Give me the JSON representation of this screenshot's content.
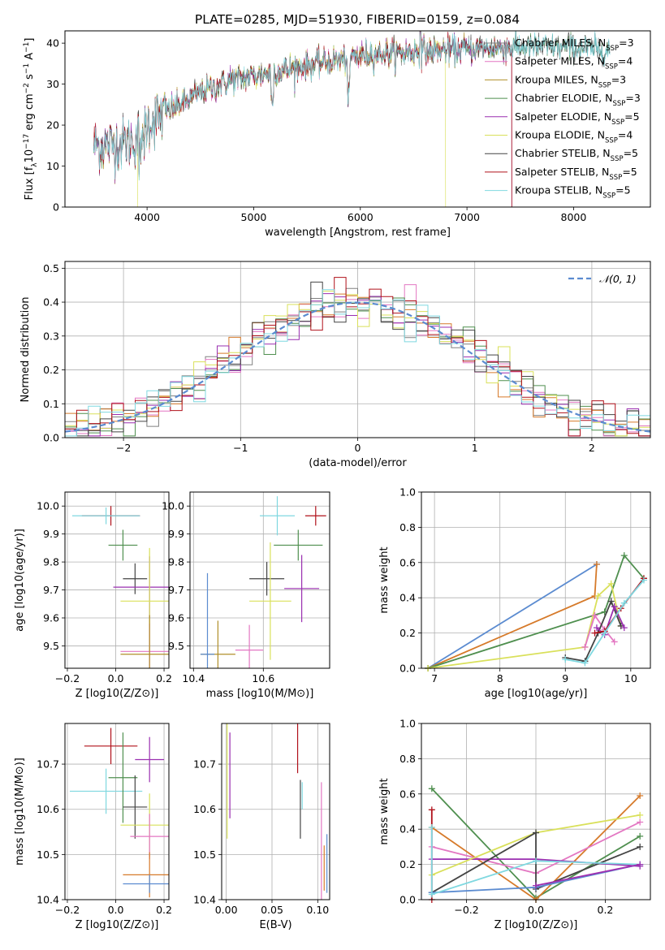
{
  "figure_title": "PLATE=0285, MJD=51930, FIBERID=0159, z=0.084",
  "model_colors": [
    "#808080",
    "#e377c2",
    "#b08f2a",
    "#4f8f4f",
    "#9a2fb0",
    "#d9e05a",
    "#444444",
    "#b0101a",
    "#7fd8e0"
  ],
  "legend_models": [
    {
      "label": "Chabrier MILES, N",
      "sub": "SSP",
      "suffix": "=3"
    },
    {
      "label": "Salpeter MILES, N",
      "sub": "SSP",
      "suffix": "=4"
    },
    {
      "label": "Kroupa MILES, N",
      "sub": "SSP",
      "suffix": "=3"
    },
    {
      "label": "Chabrier ELODIE, N",
      "sub": "SSP",
      "suffix": "=3"
    },
    {
      "label": "Salpeter ELODIE, N",
      "sub": "SSP",
      "suffix": "=5"
    },
    {
      "label": "Kroupa ELODIE, N",
      "sub": "SSP",
      "suffix": "=4"
    },
    {
      "label": "Chabrier STELIB, N",
      "sub": "SSP",
      "suffix": "=5"
    },
    {
      "label": "Salpeter STELIB, N",
      "sub": "SSP",
      "suffix": "=5"
    },
    {
      "label": "Kroupa STELIB, N",
      "sub": "SSP",
      "suffix": "=5"
    }
  ],
  "chart_data": [
    {
      "id": "spectrum",
      "type": "line",
      "xlabel": "wavelength [Angstrom, rest frame]",
      "ylabel_parts": [
        "Flux [f",
        "λ",
        "10",
        "−17",
        "erg cm",
        "−2",
        "s",
        "−1",
        "A",
        "−1",
        "]"
      ],
      "xlim": [
        3230,
        8720
      ],
      "ylim": [
        0,
        43
      ],
      "xticks": [
        4000,
        5000,
        6000,
        7000,
        8000
      ],
      "yticks": [
        0,
        10,
        20,
        30,
        40
      ],
      "legend_location": "upper right",
      "continuum": [
        [
          3500,
          15
        ],
        [
          3700,
          15.5
        ],
        [
          3880,
          16
        ],
        [
          3960,
          20
        ],
        [
          4100,
          22
        ],
        [
          4300,
          25
        ],
        [
          4500,
          28
        ],
        [
          4800,
          31
        ],
        [
          5000,
          32
        ],
        [
          5200,
          33
        ],
        [
          5500,
          34.5
        ],
        [
          5800,
          36
        ],
        [
          6000,
          37
        ],
        [
          6300,
          37.5
        ],
        [
          6600,
          38
        ],
        [
          7000,
          38.5
        ],
        [
          7300,
          39
        ],
        [
          7600,
          39
        ],
        [
          8000,
          39
        ],
        [
          8400,
          38
        ]
      ],
      "series_ranges": [
        [
          3500,
          8340
        ],
        [
          3500,
          7420
        ],
        [
          3500,
          7420
        ],
        [
          3500,
          8340
        ],
        [
          3500,
          7420
        ],
        [
          3910,
          6800
        ],
        [
          3500,
          8340
        ],
        [
          3500,
          7420
        ],
        [
          3500,
          8340
        ]
      ]
    },
    {
      "id": "residuals",
      "type": "histogram",
      "xlabel": "(data-model)/error",
      "ylabel": "Normed distribution",
      "xlim": [
        -2.5,
        2.5
      ],
      "ylim": [
        0,
        0.52
      ],
      "xticks": [
        -2,
        -1,
        0,
        1,
        2
      ],
      "yticks": [
        0,
        0.1,
        0.2,
        0.3,
        0.4,
        0.5
      ],
      "bin_width": 0.1,
      "legend": [
        {
          "label": "𝒩(0, 1)",
          "style": "dashed",
          "color": "#5b8bd0"
        }
      ],
      "reference_curve": "normal(0,1)"
    },
    {
      "id": "age-vs-Z",
      "type": "errorbar",
      "xlabel": "Z [log10(Z/Z⊙)]",
      "ylabel": "age  [log10(age/yr)]",
      "xlim": [
        -0.21,
        0.22
      ],
      "ylim": [
        9.42,
        10.05
      ],
      "xticks": [
        -0.2,
        0.0,
        0.2
      ],
      "yticks": [
        9.5,
        9.6,
        9.7,
        9.8,
        9.9,
        10.0
      ],
      "points": [
        {
          "x": -0.02,
          "xerr": 0.12,
          "y": 9.965,
          "yerr": 0.035,
          "c": "#b0101a"
        },
        {
          "x": -0.04,
          "xerr": 0.14,
          "y": 9.965,
          "yerr": 0.03,
          "c": "#7fd8e0"
        },
        {
          "x": 0.03,
          "xerr": 0.06,
          "y": 9.86,
          "yerr": 0.055,
          "c": "#4f8f4f"
        },
        {
          "x": 0.08,
          "xerr": 0.05,
          "y": 9.74,
          "yerr": 0.055,
          "c": "#444444"
        },
        {
          "x": 0.14,
          "xerr": 0.15,
          "y": 9.71,
          "yerr": 0.11,
          "c": "#9a2fb0"
        },
        {
          "x": 0.14,
          "xerr": 0.12,
          "y": 9.66,
          "yerr": 0.19,
          "c": "#d9e05a"
        },
        {
          "x": 0.14,
          "xerr": 0.12,
          "y": 9.48,
          "yerr": 0.1,
          "c": "#e377c2"
        },
        {
          "x": 0.14,
          "xerr": 0.12,
          "y": 9.47,
          "yerr": 0.14,
          "c": "#b08f2a"
        }
      ]
    },
    {
      "id": "age-vs-mass",
      "type": "errorbar",
      "xlabel": "mass [log10(M/M⊙)]",
      "xlim": [
        10.39,
        10.79
      ],
      "ylim": [
        9.42,
        10.05
      ],
      "xticks": [
        10.4,
        10.6
      ],
      "yticks": [
        9.5,
        9.6,
        9.7,
        9.8,
        9.9,
        10.0
      ],
      "points": [
        {
          "x": 10.75,
          "xerr": 0.03,
          "y": 9.965,
          "yerr": 0.035,
          "c": "#b0101a"
        },
        {
          "x": 10.64,
          "xerr": 0.05,
          "y": 9.965,
          "yerr": 0.07,
          "c": "#7fd8e0"
        },
        {
          "x": 10.7,
          "xerr": 0.07,
          "y": 9.86,
          "yerr": 0.055,
          "c": "#4f8f4f"
        },
        {
          "x": 10.61,
          "xerr": 0.05,
          "y": 9.74,
          "yerr": 0.06,
          "c": "#444444"
        },
        {
          "x": 10.71,
          "xerr": 0.05,
          "y": 9.705,
          "yerr": 0.12,
          "c": "#9a2fb0"
        },
        {
          "x": 10.62,
          "xerr": 0.06,
          "y": 9.66,
          "yerr": 0.21,
          "c": "#d9e05a"
        },
        {
          "x": 10.56,
          "xerr": 0.04,
          "y": 9.485,
          "yerr": 0.09,
          "c": "#e377c2"
        },
        {
          "x": 10.47,
          "xerr": 0.05,
          "y": 9.47,
          "yerr": 0.12,
          "c": "#b08f2a"
        },
        {
          "x": 10.44,
          "xerr": 0.02,
          "y": 9.47,
          "yerr": 0.29,
          "c": "#5b8bd0"
        }
      ]
    },
    {
      "id": "weight-vs-age",
      "type": "line",
      "xlabel": "age  [log10(age/yr)]",
      "ylabel": "mass weight",
      "xlim": [
        6.8,
        10.3
      ],
      "ylim": [
        0,
        1.0
      ],
      "xticks": [
        7,
        8,
        9,
        10
      ],
      "yticks": [
        0.0,
        0.2,
        0.4,
        0.6,
        0.8,
        1.0
      ],
      "series": [
        {
          "c": "#5b8bd0",
          "x": [
            6.9,
            9.48
          ],
          "y": [
            0.0,
            0.59
          ]
        },
        {
          "c": "#d67a2a",
          "x": [
            6.9,
            9.45,
            9.48
          ],
          "y": [
            0.0,
            0.41,
            0.59
          ]
        },
        {
          "c": "#4f8f4f",
          "x": [
            6.9,
            9.6,
            9.9,
            10.2
          ],
          "y": [
            0.0,
            0.32,
            0.64,
            0.51
          ]
        },
        {
          "c": "#d9e05a",
          "x": [
            6.9,
            9.3,
            9.5,
            9.7,
            9.85
          ],
          "y": [
            0.0,
            0.12,
            0.41,
            0.48,
            0.24
          ]
        },
        {
          "c": "#e377c2",
          "x": [
            9.3,
            9.45,
            9.6,
            9.75
          ],
          "y": [
            0.12,
            0.3,
            0.22,
            0.15
          ]
        },
        {
          "c": "#444444",
          "x": [
            9.0,
            9.3,
            9.5,
            9.7,
            9.85
          ],
          "y": [
            0.06,
            0.04,
            0.2,
            0.38,
            0.24
          ]
        },
        {
          "c": "#9a2fb0",
          "x": [
            9.48,
            9.6,
            9.75,
            9.9
          ],
          "y": [
            0.23,
            0.19,
            0.35,
            0.23
          ]
        },
        {
          "c": "#b0101a",
          "x": [
            9.45,
            9.6,
            9.85,
            10.2
          ],
          "y": [
            0.2,
            0.21,
            0.34,
            0.51
          ]
        },
        {
          "c": "#7fd8e0",
          "x": [
            9.0,
            9.3,
            9.6,
            9.9,
            10.2
          ],
          "y": [
            0.05,
            0.03,
            0.2,
            0.37,
            0.5
          ]
        }
      ]
    },
    {
      "id": "mass-vs-Z",
      "type": "errorbar",
      "xlabel": "Z [log10(Z/Z⊙)]",
      "ylabel": "mass [log10(M/M⊙)]",
      "xlim": [
        -0.21,
        0.22
      ],
      "ylim": [
        10.4,
        10.79
      ],
      "xticks": [
        -0.2,
        0.0,
        0.2
      ],
      "yticks": [
        10.4,
        10.5,
        10.6,
        10.7
      ],
      "points": [
        {
          "x": -0.02,
          "xerr": 0.11,
          "y": 10.74,
          "yerr": 0.04,
          "c": "#b0101a"
        },
        {
          "x": -0.04,
          "xerr": 0.15,
          "y": 10.64,
          "yerr": 0.05,
          "c": "#7fd8e0"
        },
        {
          "x": 0.03,
          "xerr": 0.06,
          "y": 10.67,
          "yerr": 0.1,
          "c": "#4f8f4f"
        },
        {
          "x": 0.08,
          "xerr": 0.05,
          "y": 10.605,
          "yerr": 0.07,
          "c": "#444444"
        },
        {
          "x": 0.14,
          "xerr": 0.06,
          "y": 10.71,
          "yerr": 0.05,
          "c": "#9a2fb0"
        },
        {
          "x": 0.14,
          "xerr": 0.12,
          "y": 10.565,
          "yerr": 0.07,
          "c": "#d9e05a"
        },
        {
          "x": 0.14,
          "xerr": 0.08,
          "y": 10.54,
          "yerr": 0.05,
          "c": "#e377c2"
        },
        {
          "x": 0.14,
          "xerr": 0.11,
          "y": 10.455,
          "yerr": 0.05,
          "c": "#d67a2a"
        },
        {
          "x": 0.14,
          "xerr": 0.11,
          "y": 10.435,
          "yerr": 0.02,
          "c": "#5b8bd0"
        }
      ]
    },
    {
      "id": "mass-vs-ebv",
      "type": "errorbar",
      "xlabel": "E(B-V)",
      "xlim": [
        -0.005,
        0.113
      ],
      "ylim": [
        10.4,
        10.79
      ],
      "xticks": [
        0.0,
        0.05,
        0.1
      ],
      "yticks": [
        10.4,
        10.5,
        10.6,
        10.7
      ],
      "points": [
        {
          "x": 0.001,
          "y": 10.665,
          "yerr": 0.13,
          "c": "#d9e05a"
        },
        {
          "x": 0.004,
          "y": 10.675,
          "yerr": 0.095,
          "c": "#9a2fb0"
        },
        {
          "x": 0.078,
          "y": 10.74,
          "yerr": 0.06,
          "c": "#b0101a"
        },
        {
          "x": 0.081,
          "y": 10.6,
          "yerr": 0.065,
          "c": "#444444"
        },
        {
          "x": 0.083,
          "y": 10.63,
          "yerr": 0.03,
          "c": "#7fd8e0"
        },
        {
          "x": 0.104,
          "y": 10.53,
          "yerr": 0.13,
          "c": "#e377c2"
        },
        {
          "x": 0.107,
          "y": 10.47,
          "yerr": 0.05,
          "c": "#d67a2a"
        },
        {
          "x": 0.11,
          "y": 10.48,
          "yerr": 0.065,
          "c": "#5b8bd0"
        }
      ]
    },
    {
      "id": "weight-vs-Z",
      "type": "line",
      "xlabel": "Z [log10(Z/Z⊙)]",
      "ylabel": "mass weight",
      "xlim": [
        -0.33,
        0.33
      ],
      "ylim": [
        0,
        1.0
      ],
      "xticks": [
        -0.2,
        0.0,
        0.2
      ],
      "yticks": [
        0.0,
        0.2,
        0.4,
        0.6,
        0.8,
        1.0
      ],
      "series": [
        {
          "c": "#4f8f4f",
          "x": [
            -0.3,
            0.0,
            0.3
          ],
          "y": [
            0.63,
            0.01,
            0.36
          ]
        },
        {
          "c": "#b0101a",
          "x": [
            -0.3,
            -0.3
          ],
          "y": [
            0.0,
            0.51
          ]
        },
        {
          "c": "#d67a2a",
          "x": [
            -0.3,
            0.0,
            0.3
          ],
          "y": [
            0.41,
            0.0,
            0.59
          ]
        },
        {
          "c": "#e377c2",
          "x": [
            -0.3,
            0.0,
            0.3
          ],
          "y": [
            0.3,
            0.15,
            0.44
          ]
        },
        {
          "c": "#9a2fb0",
          "x": [
            -0.3,
            0.0,
            0.3
          ],
          "y": [
            0.23,
            0.23,
            0.19
          ]
        },
        {
          "c": "#d9e05a",
          "x": [
            -0.3,
            0.0,
            0.3
          ],
          "y": [
            0.14,
            0.38,
            0.48
          ]
        },
        {
          "c": "#444444",
          "x": [
            -0.3,
            0.0,
            0.0,
            0.3
          ],
          "y": [
            0.04,
            0.38,
            0.06,
            0.3
          ]
        },
        {
          "c": "#5b8bd0",
          "x": [
            -0.3,
            0.0,
            0.3
          ],
          "y": [
            0.04,
            0.07,
            0.2
          ]
        },
        {
          "c": "#7fd8e0",
          "x": [
            -0.3,
            -0.3,
            0.0,
            0.3
          ],
          "y": [
            0.41,
            0.03,
            0.22,
            0.2
          ]
        },
        {
          "c": "#a02fb0",
          "x": [
            0.0,
            0.3
          ],
          "y": [
            0.08,
            0.2
          ]
        }
      ]
    }
  ]
}
